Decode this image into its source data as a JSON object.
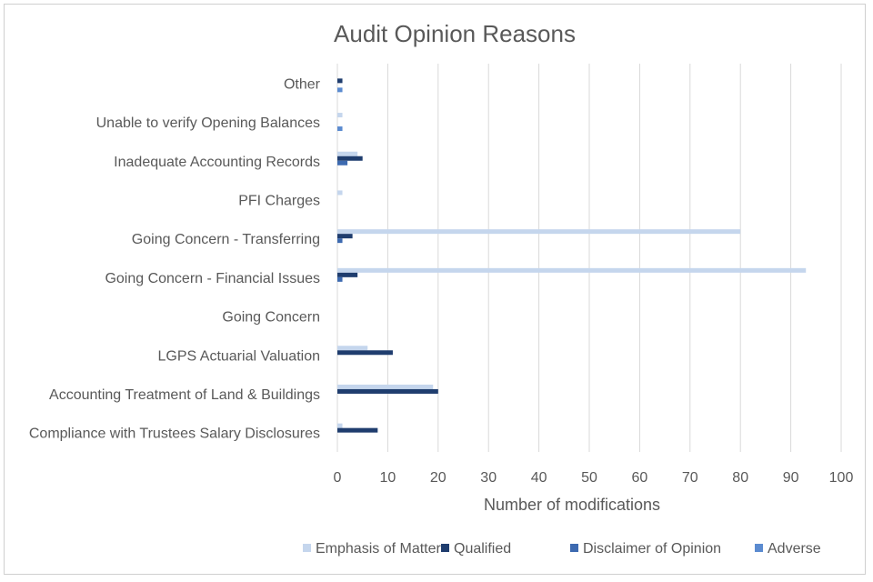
{
  "chart_data": {
    "type": "bar",
    "orientation": "horizontal",
    "title": "Audit Opinion Reasons",
    "xlabel": "Number of modifications",
    "ylabel": "",
    "xlim": [
      0,
      100
    ],
    "x_ticks": [
      0,
      10,
      20,
      30,
      40,
      50,
      60,
      70,
      80,
      90,
      100
    ],
    "grid": true,
    "legend_position": "bottom",
    "categories": [
      "Other",
      "Unable to verify Opening Balances",
      "Inadequate Accounting Records",
      "PFI Charges",
      "Going Concern - Transferring",
      "Going Concern - Financial Issues",
      "Going Concern",
      "LGPS Actuarial Valuation",
      "Accounting Treatment of Land & Buildings",
      "Compliance with Trustees Salary Disclosures"
    ],
    "series": [
      {
        "name": "Emphasis of Matter",
        "color": "#c5d6ed",
        "values": [
          0,
          1,
          4,
          1,
          80,
          93,
          0,
          6,
          19,
          1
        ]
      },
      {
        "name": "Qualified",
        "color": "#1f3d6e",
        "values": [
          1,
          0,
          5,
          0,
          3,
          4,
          0,
          11,
          20,
          8
        ]
      },
      {
        "name": "Disclaimer of Opinion",
        "color": "#3d6ab0",
        "values": [
          0,
          0,
          2,
          0,
          1,
          1,
          0,
          0,
          0,
          0
        ]
      },
      {
        "name": "Adverse",
        "color": "#5b8bd0",
        "values": [
          1,
          1,
          0,
          0,
          0,
          0,
          0,
          0,
          0,
          0
        ]
      }
    ]
  }
}
